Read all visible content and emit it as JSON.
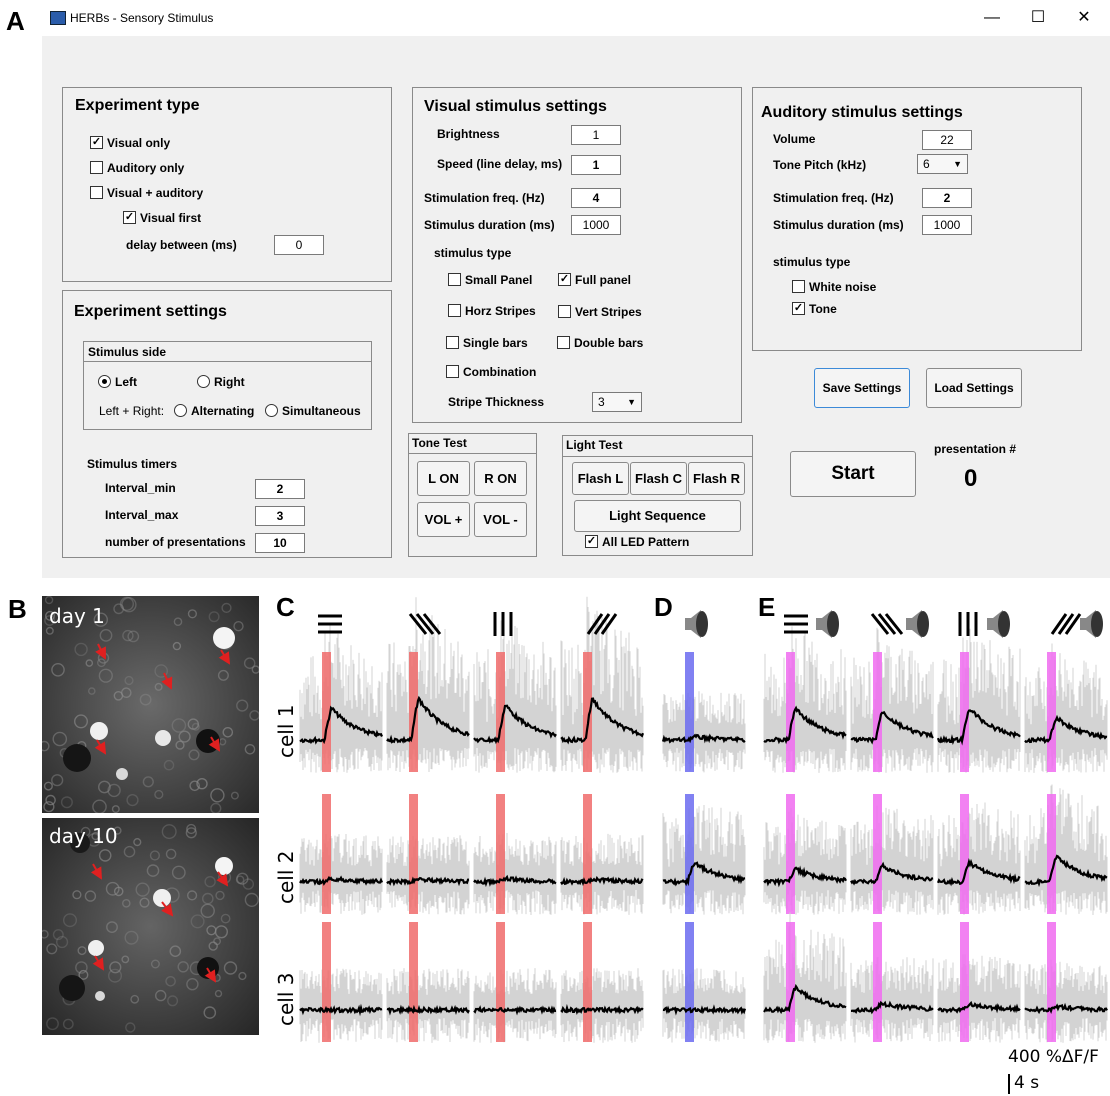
{
  "figure_labels": {
    "a": "A",
    "b": "B",
    "c": "C",
    "d": "D",
    "e": "E"
  },
  "window": {
    "title": "HERBs - Sensory Stimulus",
    "minimize": "—",
    "maximize": "☐",
    "close": "✕"
  },
  "experiment_type": {
    "title": "Experiment type",
    "visual_only": "Visual only",
    "auditory_only": "Auditory only",
    "visual_auditory": "Visual + auditory",
    "visual_first": "Visual first",
    "delay_label": "delay between (ms)",
    "delay_value": "0",
    "checked": {
      "visual_only": true,
      "auditory_only": false,
      "visual_auditory": false,
      "visual_first": true
    }
  },
  "experiment_settings": {
    "title": "Experiment settings",
    "stimulus_side_title": "Stimulus side",
    "left": "Left",
    "right": "Right",
    "left_right_label": "Left + Right:",
    "alternating": "Alternating",
    "simultaneous": "Simultaneous",
    "selected": "Left",
    "timers_title": "Stimulus timers",
    "interval_min_label": "Interval_min",
    "interval_min": "2",
    "interval_max_label": "Interval_max",
    "interval_max": "3",
    "presentations_label": "number of presentations",
    "presentations": "10"
  },
  "visual": {
    "title": "Visual stimulus settings",
    "brightness_label": "Brightness",
    "brightness": "1",
    "speed_label": "Speed (line delay, ms)",
    "speed": "1",
    "freq_label": "Stimulation freq. (Hz)",
    "freq": "4",
    "duration_label": "Stimulus duration (ms)",
    "duration": "1000",
    "stim_type_label": "stimulus type",
    "small_panel": "Small Panel",
    "full_panel": "Full panel",
    "horz_stripes": "Horz Stripes",
    "vert_stripes": "Vert Stripes",
    "single_bars": "Single bars",
    "double_bars": "Double bars",
    "combination": "Combination",
    "stripe_thickness_label": "Stripe Thickness",
    "stripe_thickness": "3",
    "checked": {
      "small_panel": false,
      "full_panel": true,
      "horz_stripes": false,
      "vert_stripes": false,
      "single_bars": false,
      "double_bars": false,
      "combination": false
    }
  },
  "auditory": {
    "title": "Auditory stimulus settings",
    "volume_label": "Volume",
    "volume": "22",
    "pitch_label": "Tone Pitch (kHz)",
    "pitch": "6",
    "freq_label": "Stimulation freq. (Hz)",
    "freq": "2",
    "duration_label": "Stimulus duration (ms)",
    "duration": "1000",
    "stim_type_label": "stimulus type",
    "white_noise": "White noise",
    "tone": "Tone",
    "checked": {
      "white_noise": false,
      "tone": true
    }
  },
  "buttons": {
    "save": "Save Settings",
    "load": "Load Settings",
    "start": "Start"
  },
  "presentation": {
    "label": "presentation #",
    "value": "0"
  },
  "tone_test": {
    "title": "Tone Test",
    "l_on": "L ON",
    "r_on": "R ON",
    "vol_plus": "VOL +",
    "vol_minus": "VOL -"
  },
  "light_test": {
    "title": "Light Test",
    "flash_l": "Flash L",
    "flash_c": "Flash C",
    "flash_r": "Flash R",
    "sequence": "Light Sequence",
    "all_led": "All LED Pattern",
    "all_led_checked": true
  },
  "imaging": {
    "day1": "day 1",
    "day10": "day 10"
  },
  "cells": [
    "cell 1",
    "cell 2",
    "cell 3"
  ],
  "scale": {
    "y": "400 %ΔF/F",
    "x": "4 s"
  },
  "colors": {
    "visual_bar": "#f06b6b",
    "auditory_bar": "#6b6bf0",
    "combined_bar": "#f06bf0",
    "trace": "#000000",
    "trials": "#d3d3d3",
    "arrow": "#e02020"
  }
}
